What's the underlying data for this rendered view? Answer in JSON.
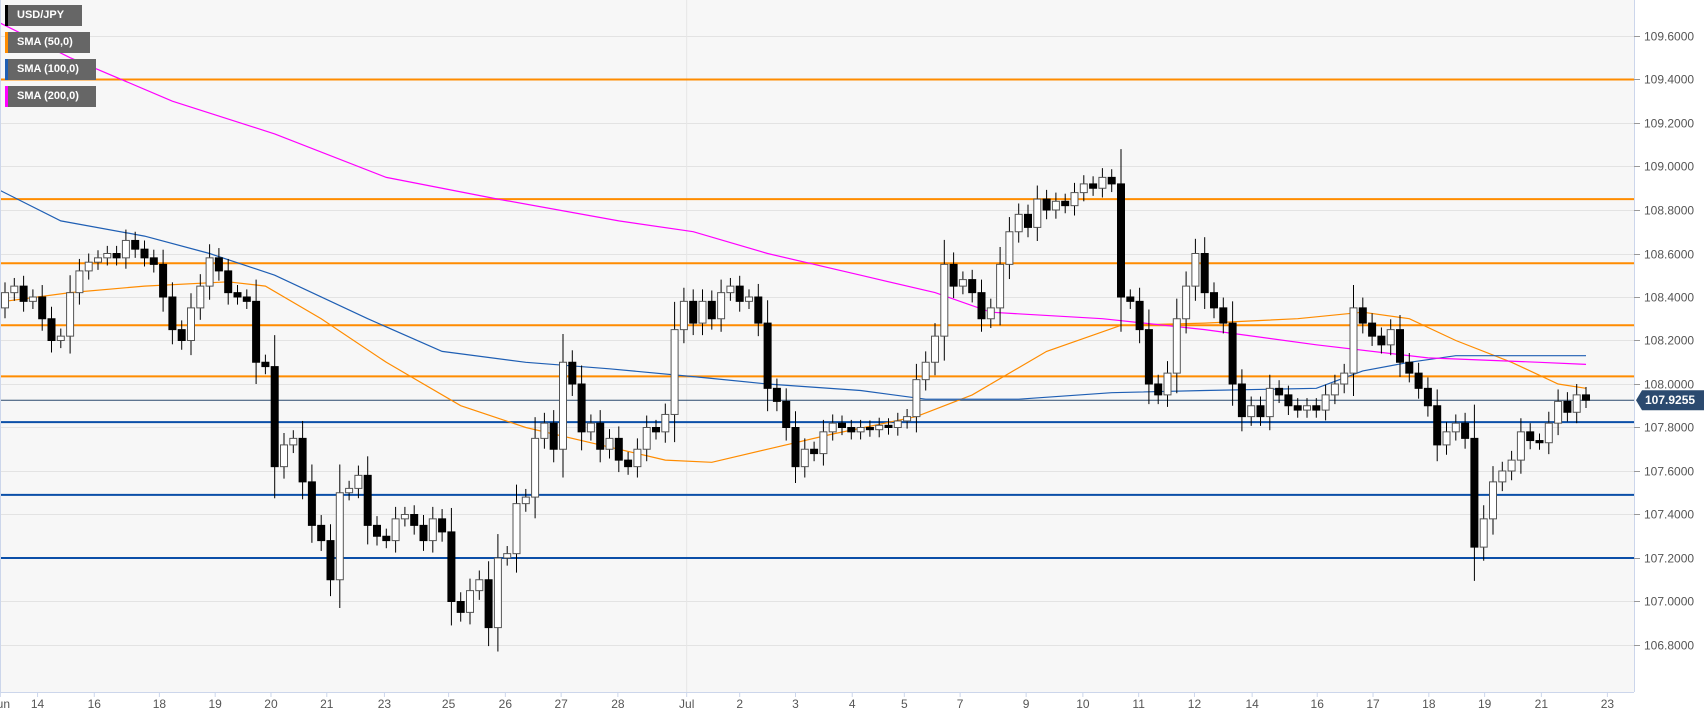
{
  "legend": [
    {
      "label": "USD/JPY",
      "color": "#000000"
    },
    {
      "label": "SMA (50,0)",
      "color": "#ff8c00"
    },
    {
      "label": "SMA (100,0)",
      "color": "#1f5fb4"
    },
    {
      "label": "SMA (200,0)",
      "color": "#ff00ff"
    }
  ],
  "chart_data": {
    "type": "candlestick",
    "symbol": "USD/JPY",
    "ylim": [
      106.62,
      109.72
    ],
    "y_ticks": [
      "109.6000",
      "109.4000",
      "109.2000",
      "109.0000",
      "108.8000",
      "108.6000",
      "108.4000",
      "108.2000",
      "108.0000",
      "107.8000",
      "107.6000",
      "107.4000",
      "107.2000",
      "107.0000",
      "106.8000"
    ],
    "x_ticks": [
      {
        "label": "Jun",
        "idx": -0.5
      },
      {
        "label": "14",
        "idx": 3.5
      },
      {
        "label": "16",
        "idx": 9.6
      },
      {
        "label": "18",
        "idx": 16.6
      },
      {
        "label": "19",
        "idx": 22.6
      },
      {
        "label": "20",
        "idx": 28.6
      },
      {
        "label": "21",
        "idx": 34.6
      },
      {
        "label": "23",
        "idx": 40.8
      },
      {
        "label": "25",
        "idx": 47.7
      },
      {
        "label": "26",
        "idx": 53.8
      },
      {
        "label": "27",
        "idx": 59.8
      },
      {
        "label": "28",
        "idx": 65.9
      },
      {
        "label": "Jul",
        "idx": 73.3
      },
      {
        "label": "2",
        "idx": 79.0
      },
      {
        "label": "3",
        "idx": 85.0
      },
      {
        "label": "4",
        "idx": 91.1
      },
      {
        "label": "5",
        "idx": 96.7
      },
      {
        "label": "7",
        "idx": 102.7
      },
      {
        "label": "9",
        "idx": 109.8
      },
      {
        "label": "10",
        "idx": 115.9
      },
      {
        "label": "11",
        "idx": 121.9
      },
      {
        "label": "12",
        "idx": 127.9
      },
      {
        "label": "14",
        "idx": 134.1
      },
      {
        "label": "16",
        "idx": 141.1
      },
      {
        "label": "17",
        "idx": 147.1
      },
      {
        "label": "18",
        "idx": 153.1
      },
      {
        "label": "19",
        "idx": 159.1
      },
      {
        "label": "21",
        "idx": 165.2
      },
      {
        "label": "23",
        "idx": 172.3
      }
    ],
    "first_open": 108.35,
    "close": [
      108.42,
      108.45,
      108.38,
      108.4,
      108.3,
      108.2,
      108.22,
      108.42,
      108.52,
      108.56,
      108.58,
      108.6,
      108.58,
      108.66,
      108.62,
      108.58,
      108.55,
      108.4,
      108.25,
      108.2,
      108.35,
      108.45,
      108.58,
      108.52,
      108.42,
      108.4,
      108.38,
      108.1,
      108.08,
      107.62,
      107.72,
      107.75,
      107.55,
      107.35,
      107.28,
      107.1,
      107.5,
      107.52,
      107.58,
      107.35,
      107.3,
      107.28,
      107.38,
      107.4,
      107.35,
      107.28,
      107.38,
      107.32,
      107.0,
      106.95,
      107.05,
      107.1,
      106.88,
      107.2,
      107.22,
      107.45,
      107.48,
      107.75,
      107.82,
      107.7,
      108.1,
      108.0,
      107.78,
      107.82,
      107.7,
      107.75,
      107.65,
      107.62,
      107.7,
      107.8,
      107.78,
      107.86,
      108.25,
      108.38,
      108.28,
      108.38,
      108.3,
      108.42,
      108.45,
      108.38,
      108.4,
      108.28,
      107.98,
      107.92,
      107.8,
      107.62,
      107.7,
      107.68,
      107.78,
      107.82,
      107.8,
      107.78,
      107.8,
      107.79,
      107.81,
      107.8,
      107.83,
      107.85,
      108.02,
      108.1,
      108.22,
      108.55,
      108.45,
      108.48,
      108.42,
      108.3,
      108.35,
      108.55,
      108.7,
      108.78,
      108.72,
      108.85,
      108.8,
      108.84,
      108.82,
      108.88,
      108.92,
      108.9,
      108.95,
      108.92,
      108.4,
      108.38,
      108.25,
      108.0,
      107.95,
      108.05,
      108.3,
      108.45,
      108.6,
      108.42,
      108.35,
      108.28,
      108.0,
      107.85,
      107.9,
      107.85,
      107.98,
      107.95,
      107.9,
      107.88,
      107.9,
      107.88,
      107.95,
      108.0,
      108.05,
      108.35,
      108.28,
      108.22,
      108.18,
      108.25,
      108.1,
      108.05,
      107.98,
      107.9,
      107.72,
      107.78,
      107.82,
      107.75,
      107.25,
      107.38,
      107.55,
      107.6,
      107.65,
      107.78,
      107.74,
      107.73,
      107.82,
      107.92,
      107.87,
      107.95,
      107.9255
    ],
    "sma": [
      {
        "name": "SMA (50,0)",
        "color": "#ff8c00",
        "points": [
          [
            0,
            108.38
          ],
          [
            7,
            108.42
          ],
          [
            15,
            108.45
          ],
          [
            24,
            108.47
          ],
          [
            28,
            108.45
          ],
          [
            34,
            108.3
          ],
          [
            41,
            108.1
          ],
          [
            49,
            107.9
          ],
          [
            56,
            107.8
          ],
          [
            64,
            107.72
          ],
          [
            71,
            107.65
          ],
          [
            76,
            107.64
          ],
          [
            82,
            107.7
          ],
          [
            89,
            107.77
          ],
          [
            98,
            107.85
          ],
          [
            104,
            107.95
          ],
          [
            112,
            108.15
          ],
          [
            120,
            108.27
          ],
          [
            129,
            108.28
          ],
          [
            139,
            108.3
          ],
          [
            146,
            108.33
          ],
          [
            151,
            108.3
          ],
          [
            156,
            108.2
          ],
          [
            162,
            108.1
          ],
          [
            167,
            108.0
          ],
          [
            170,
            107.98
          ]
        ]
      },
      {
        "name": "SMA (100,0)",
        "color": "#1f5fb4",
        "points": [
          [
            -1,
            108.9
          ],
          [
            6,
            108.75
          ],
          [
            15,
            108.68
          ],
          [
            22,
            108.6
          ],
          [
            29,
            108.5
          ],
          [
            39,
            108.3
          ],
          [
            47,
            108.15
          ],
          [
            56,
            108.1
          ],
          [
            65,
            108.07
          ],
          [
            75,
            108.03
          ],
          [
            82,
            108.0
          ],
          [
            92,
            107.97
          ],
          [
            99,
            107.93
          ],
          [
            109,
            107.93
          ],
          [
            119,
            107.96
          ],
          [
            129,
            107.97
          ],
          [
            141,
            107.98
          ],
          [
            146,
            108.06
          ],
          [
            151,
            108.1
          ],
          [
            156,
            108.13
          ],
          [
            170,
            108.13
          ]
        ]
      },
      {
        "name": "SMA (200,0)",
        "color": "#ff00ff",
        "points": [
          [
            -1,
            109.67
          ],
          [
            7,
            109.5
          ],
          [
            18,
            109.3
          ],
          [
            29,
            109.15
          ],
          [
            41,
            108.95
          ],
          [
            53,
            108.85
          ],
          [
            66,
            108.75
          ],
          [
            74,
            108.7
          ],
          [
            82,
            108.6
          ],
          [
            92,
            108.5
          ],
          [
            100,
            108.42
          ],
          [
            106,
            108.33
          ],
          [
            118,
            108.3
          ],
          [
            129,
            108.25
          ],
          [
            141,
            108.18
          ],
          [
            153,
            108.12
          ],
          [
            165,
            108.1
          ],
          [
            170,
            108.09
          ]
        ]
      }
    ],
    "levels": [
      {
        "value": 109.4,
        "color": "#ff8c00"
      },
      {
        "value": 108.85,
        "color": "#ff8c00"
      },
      {
        "value": 108.555,
        "color": "#ff8c00"
      },
      {
        "value": 108.27,
        "color": "#ff8c00"
      },
      {
        "value": 108.035,
        "color": "#ff8c00"
      },
      {
        "value": 107.825,
        "color": "#0b4fa8"
      },
      {
        "value": 107.49,
        "color": "#0b4fa8"
      },
      {
        "value": 107.2,
        "color": "#0b4fa8"
      }
    ],
    "current_price": {
      "value": 107.9255,
      "label": "107.9255",
      "color": "#2b4a6f"
    }
  }
}
